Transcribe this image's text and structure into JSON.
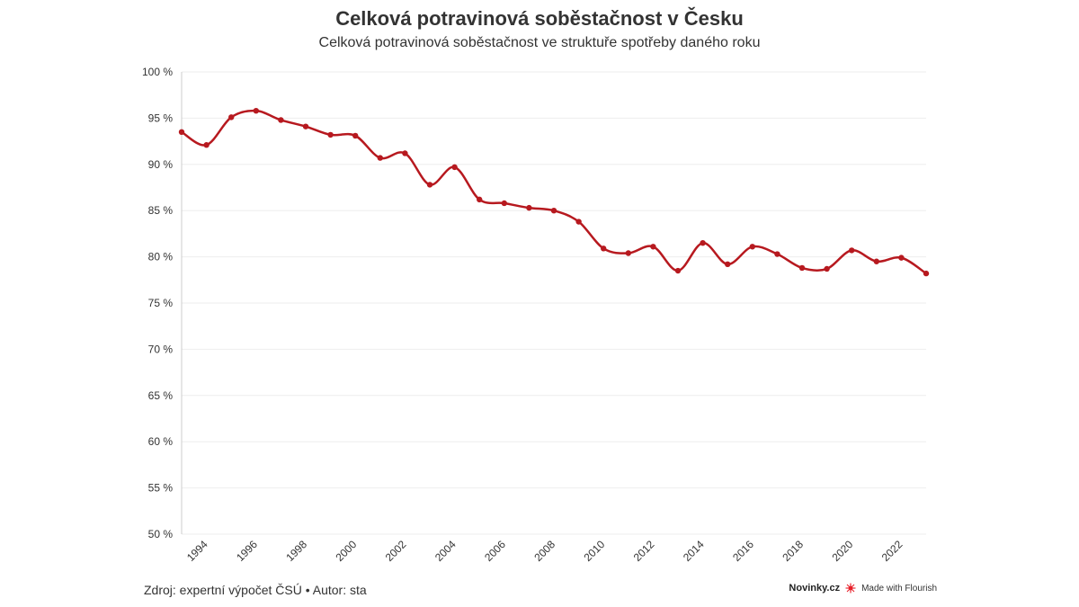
{
  "header": {
    "title": "Celková potravinová soběstačnost v Česku",
    "subtitle": "Celková potravinová soběstačnost ve struktuře spotřeby daného roku"
  },
  "footer": {
    "source": "Zdroj: expertní výpočet ČSÚ • Autor: sta",
    "brand": "Novinky.cz",
    "made_with": "Made with Flourish"
  },
  "colors": {
    "line": "#b7191f",
    "grid": "#eeeeee",
    "axis": "#cccccc",
    "text": "#333333"
  },
  "chart_data": {
    "type": "line",
    "title": "Celková potravinová soběstačnost v Česku",
    "subtitle": "Celková potravinová soběstačnost ve struktuře spotřeby daného roku",
    "xlabel": "",
    "ylabel": "",
    "ylim": [
      50,
      100
    ],
    "xlim": [
      1993,
      2023
    ],
    "grid": true,
    "y_ticks": [
      "50 %",
      "55 %",
      "60 %",
      "65 %",
      "70 %",
      "75 %",
      "80 %",
      "85 %",
      "90 %",
      "95 %",
      "100 %"
    ],
    "x_ticks": [
      "1994",
      "1996",
      "1998",
      "2000",
      "2002",
      "2004",
      "2006",
      "2008",
      "2010",
      "2012",
      "2014",
      "2016",
      "2018",
      "2020",
      "2022"
    ],
    "x": [
      1993,
      1994,
      1995,
      1996,
      1997,
      1998,
      1999,
      2000,
      2001,
      2002,
      2003,
      2004,
      2005,
      2006,
      2007,
      2008,
      2009,
      2010,
      2011,
      2012,
      2013,
      2014,
      2015,
      2016,
      2017,
      2018,
      2019,
      2020,
      2021,
      2022,
      2023
    ],
    "series": [
      {
        "values": [
          93.5,
          92.1,
          95.1,
          95.8,
          94.8,
          94.1,
          93.2,
          93.1,
          90.7,
          91.2,
          87.8,
          89.7,
          86.2,
          85.8,
          85.3,
          85.0,
          83.8,
          80.9,
          80.4,
          81.1,
          78.5,
          81.5,
          79.2,
          81.1,
          80.3,
          78.8,
          78.7,
          80.7,
          79.5,
          79.9,
          78.2
        ]
      }
    ]
  }
}
